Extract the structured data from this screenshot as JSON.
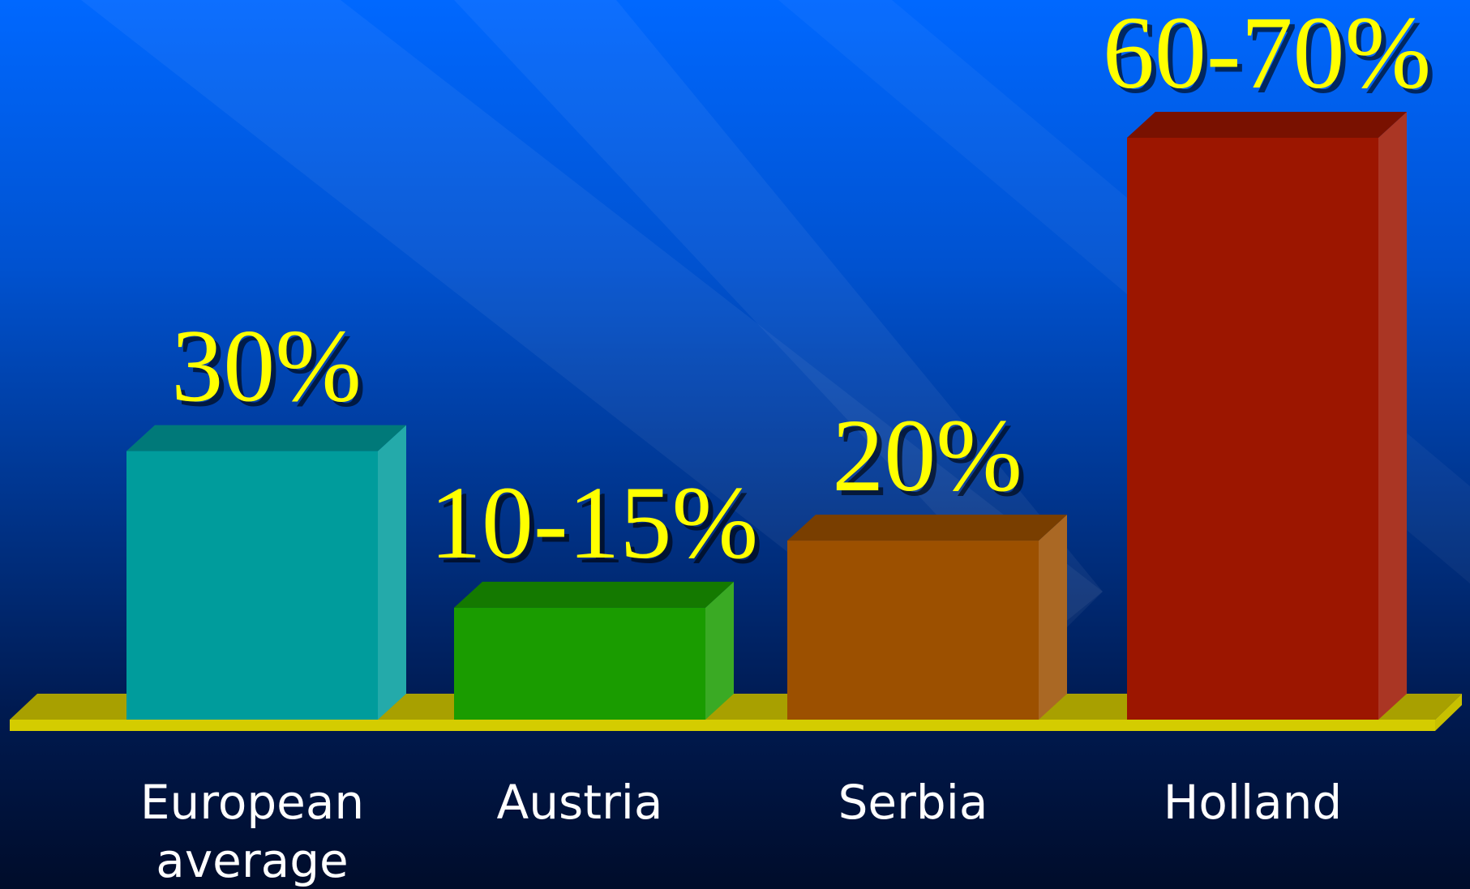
{
  "chart_data": {
    "type": "bar3d",
    "categories": [
      "European average",
      "Austria",
      "Serbia",
      "Holland"
    ],
    "values": [
      30,
      12.5,
      20,
      65
    ],
    "value_labels": [
      "30%",
      "10-15%",
      "20%",
      "60-70%"
    ],
    "colors": [
      "#009c9c",
      "#1a9c00",
      "#9c5000",
      "#9c1600"
    ],
    "label_color": "#ffff00"
  }
}
